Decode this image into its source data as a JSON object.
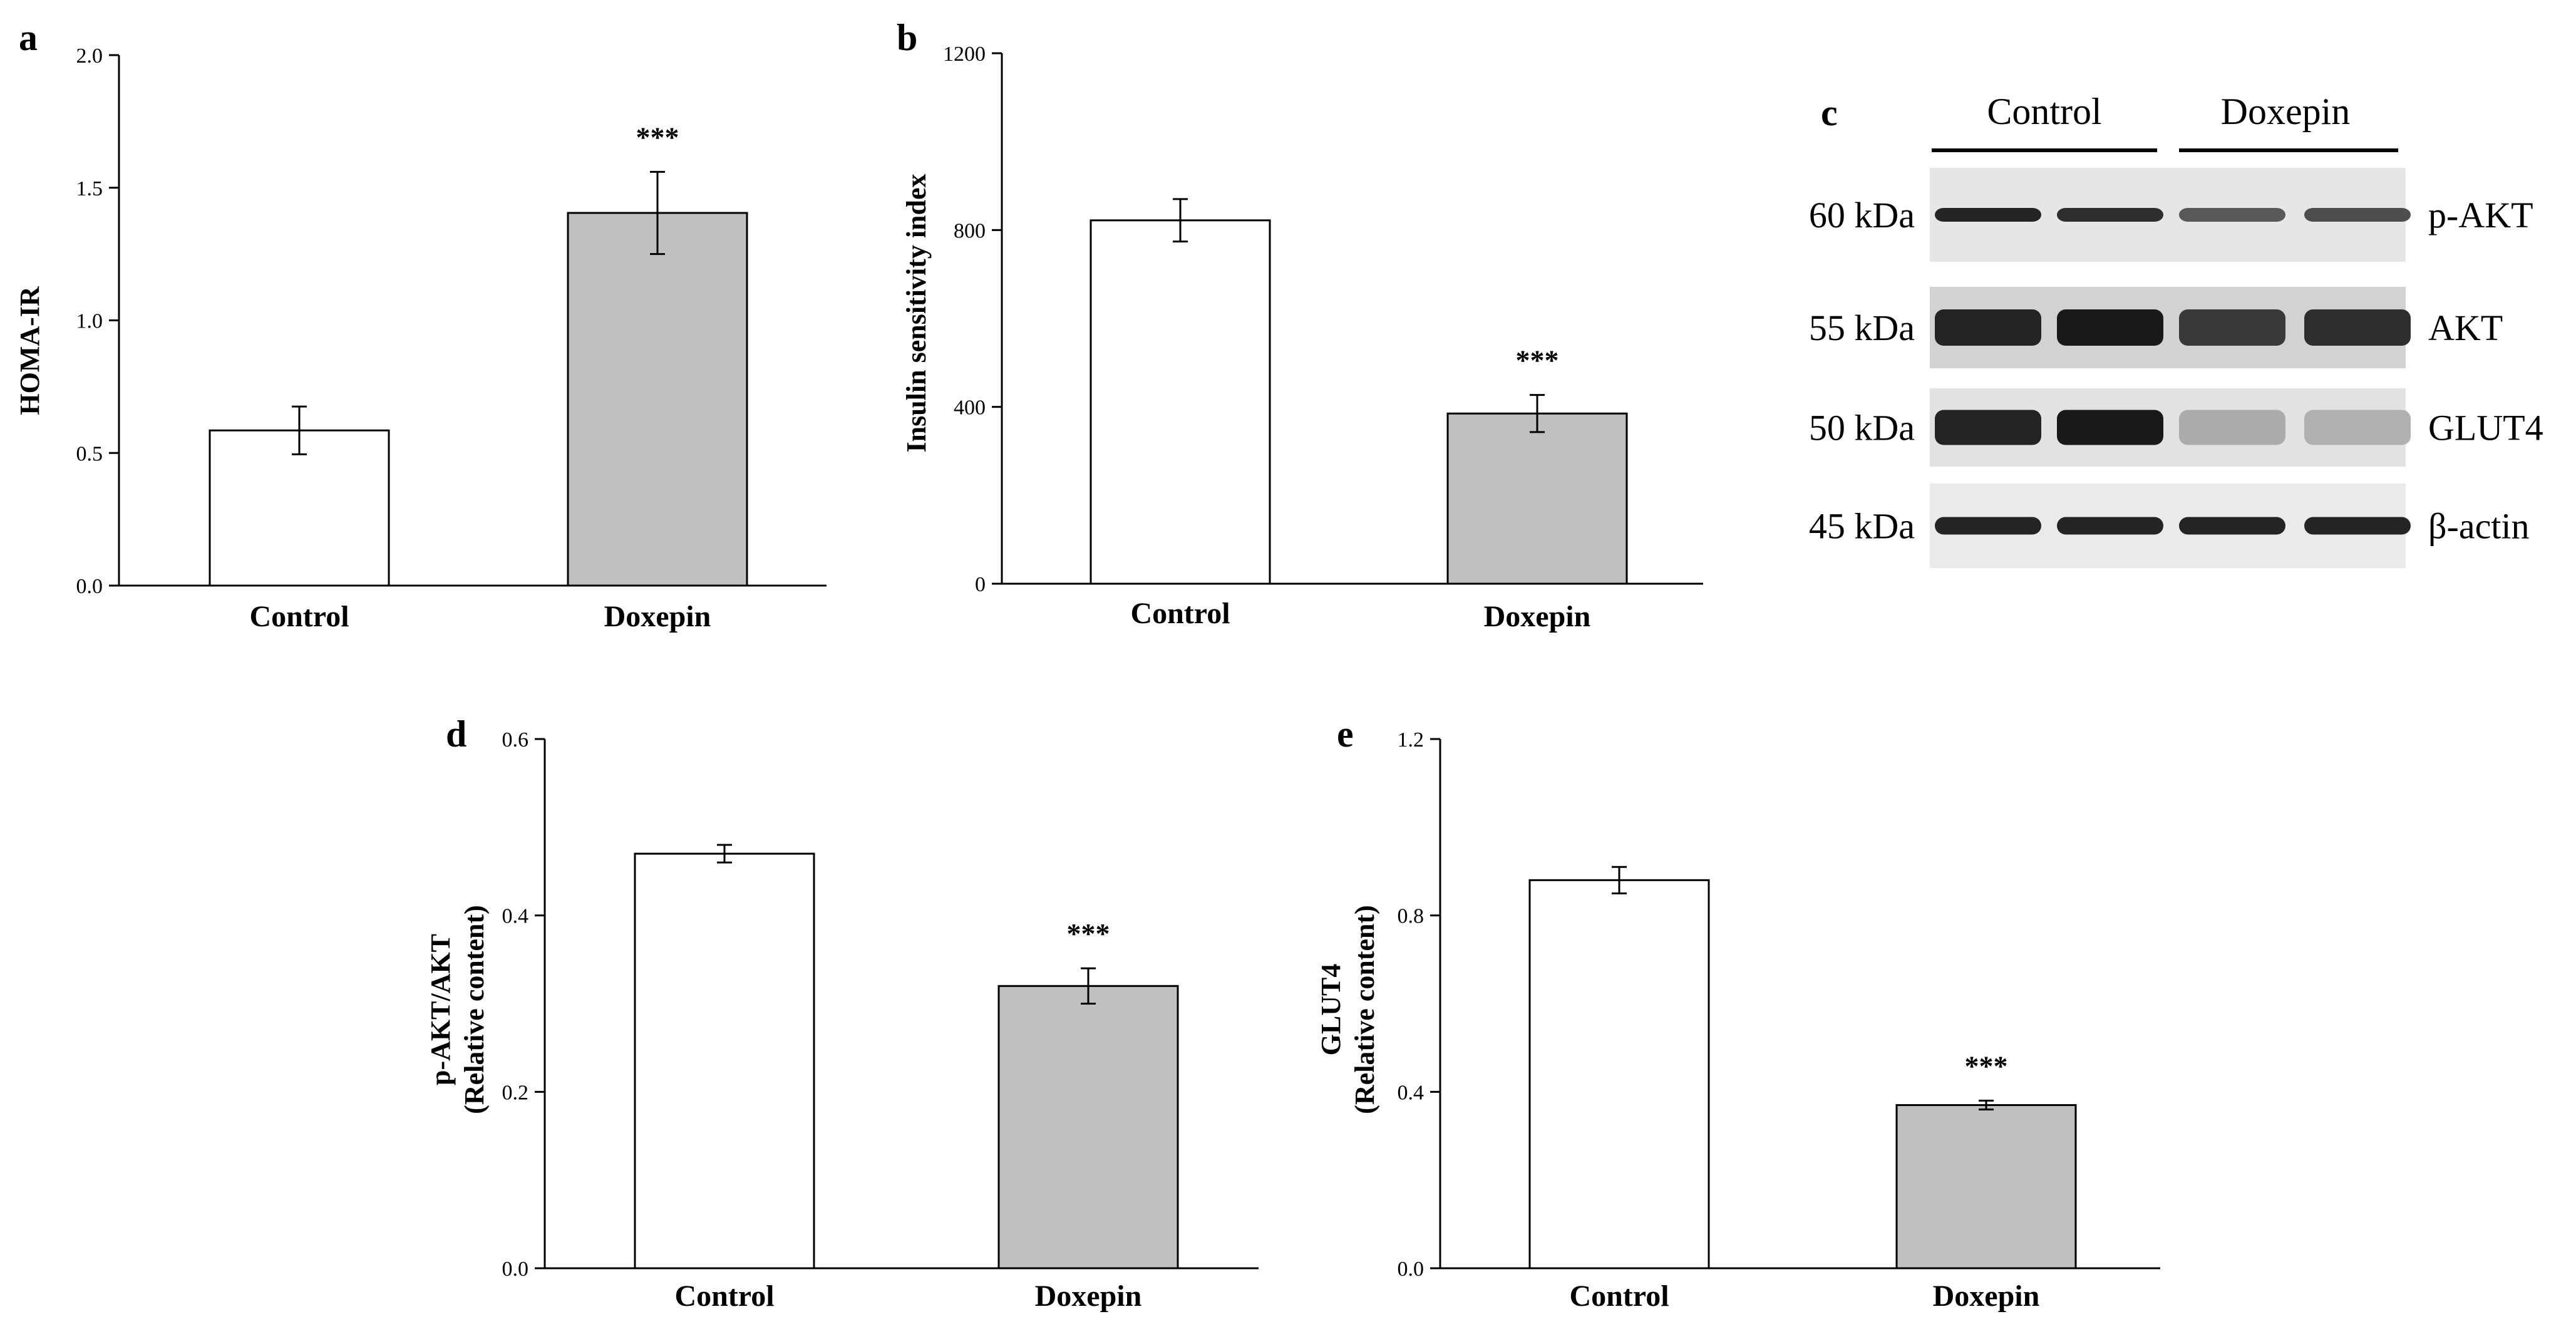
{
  "figure": {
    "bar_colors": {
      "control": "#ffffff",
      "doxepin": "#c0c0c0",
      "stroke": "#000000"
    },
    "background": "#ffffff"
  },
  "chart_data": [
    {
      "id": "a",
      "panel_label": "a",
      "type": "bar",
      "categories": [
        "Control",
        "Doxepin"
      ],
      "values": [
        0.585,
        1.405
      ],
      "errors": [
        0.09,
        0.155
      ],
      "significance": [
        "",
        "***"
      ],
      "ylabel_lines": [
        "HOMA-IR"
      ],
      "ylim": [
        0,
        2.0
      ],
      "yticks": [
        "0.0",
        "0.5",
        "1.0",
        "1.5",
        "2.0"
      ],
      "ytick_values": [
        0,
        0.5,
        1.0,
        1.5,
        2.0
      ]
    },
    {
      "id": "b",
      "panel_label": "b",
      "type": "bar",
      "categories": [
        "Control",
        "Doxepin"
      ],
      "values": [
        822,
        385
      ],
      "errors": [
        48,
        42
      ],
      "significance": [
        "",
        "***"
      ],
      "ylabel_lines": [
        "Insulin sensitivity index"
      ],
      "ylim": [
        0,
        1200
      ],
      "yticks": [
        "0",
        "400",
        "800",
        "1200"
      ],
      "ytick_values": [
        0,
        400,
        800,
        1200
      ]
    },
    {
      "id": "d",
      "panel_label": "d",
      "type": "bar",
      "categories": [
        "Control",
        "Doxepin"
      ],
      "values": [
        0.47,
        0.32
      ],
      "errors": [
        0.01,
        0.02
      ],
      "significance": [
        "",
        "***"
      ],
      "ylabel_lines": [
        "p-AKT/AKT",
        "(Relative content)"
      ],
      "ylim": [
        0,
        0.6
      ],
      "yticks": [
        "0.0",
        "0.2",
        "0.4",
        "0.6"
      ],
      "ytick_values": [
        0,
        0.2,
        0.4,
        0.6
      ]
    },
    {
      "id": "e",
      "panel_label": "e",
      "type": "bar",
      "categories": [
        "Control",
        "Doxepin"
      ],
      "values": [
        0.88,
        0.37
      ],
      "errors": [
        0.03,
        0.01
      ],
      "significance": [
        "",
        "***"
      ],
      "ylabel_lines": [
        "GLUT4",
        "(Relative content)"
      ],
      "ylim": [
        0,
        1.2
      ],
      "yticks": [
        "0.0",
        "0.4",
        "0.8",
        "1.2"
      ],
      "ytick_values": [
        0,
        0.4,
        0.8,
        1.2
      ]
    }
  ],
  "western_blot": {
    "panel_label": "c",
    "groups": [
      "Control",
      "Doxepin"
    ],
    "rows": [
      {
        "size": "60 kDa",
        "protein": "p-AKT",
        "intensities": [
          0.95,
          0.9,
          0.7,
          0.75
        ]
      },
      {
        "size": "55 kDa",
        "protein": "AKT",
        "intensities": [
          0.95,
          1.0,
          0.85,
          0.9
        ]
      },
      {
        "size": "50 kDa",
        "protein": "GLUT4",
        "intensities": [
          0.95,
          1.0,
          0.3,
          0.28
        ]
      },
      {
        "size": "45 kDa",
        "protein": "β-actin",
        "intensities": [
          0.95,
          0.95,
          0.95,
          0.95
        ]
      }
    ]
  }
}
